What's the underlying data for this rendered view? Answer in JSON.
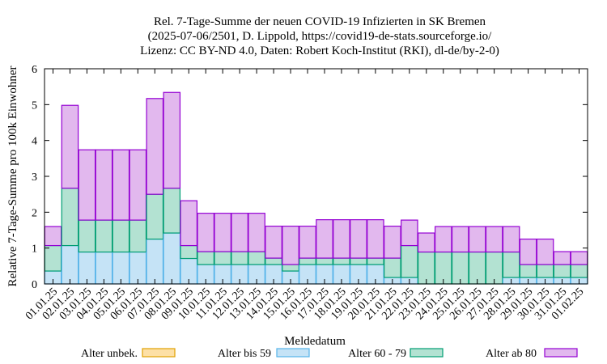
{
  "chart_data": {
    "type": "bar",
    "stacked": true,
    "title_lines": [
      "Rel. 7-Tage-Summe der neuen COVID-19 Infizierten in SK Bremen",
      "(2025-07-06/2501, D. Lippold, https://covid19-de-stats.sourceforge.io/",
      "Lizenz: CC BY-ND 4.0, Daten: Robert Koch-Institut (RKI), dl-de/by-2-0)"
    ],
    "xlabel": "Meldedatum",
    "ylabel": "Relative 7-Tage-Summe pro 100k Einwohner",
    "ylim": [
      0,
      6
    ],
    "yticks": [
      0,
      1,
      2,
      3,
      4,
      5,
      6
    ],
    "grid": false,
    "legend_position": "bottom",
    "categories": [
      "01.01.25",
      "02.01.25",
      "03.01.25",
      "04.01.25",
      "05.01.25",
      "06.01.25",
      "07.01.25",
      "08.01.25",
      "09.01.25",
      "10.01.25",
      "11.01.25",
      "12.01.25",
      "13.01.25",
      "14.01.25",
      "15.01.25",
      "16.01.25",
      "17.01.25",
      "18.01.25",
      "19.01.25",
      "20.01.25",
      "21.01.25",
      "22.01.25",
      "23.01.25",
      "24.01.25",
      "25.01.25",
      "26.01.25",
      "27.01.25",
      "28.01.25",
      "29.01.25",
      "30.01.25",
      "31.01.25",
      "01.02.25"
    ],
    "series": [
      {
        "name": "Alter unbek.",
        "color": "#fde0a6",
        "stroke": "#e0a000",
        "values": [
          0,
          0,
          0,
          0,
          0,
          0,
          0,
          0,
          0,
          0,
          0,
          0,
          0,
          0,
          0,
          0,
          0,
          0,
          0,
          0,
          0,
          0,
          0,
          0,
          0,
          0,
          0,
          0,
          0,
          0,
          0,
          0
        ]
      },
      {
        "name": "Alter bis 59",
        "color": "#c5e3f6",
        "stroke": "#56b4e9",
        "values": [
          0.36,
          1.07,
          0.89,
          0.89,
          0.89,
          0.89,
          1.25,
          1.42,
          0.71,
          0.54,
          0.54,
          0.54,
          0.54,
          0.54,
          0.36,
          0.54,
          0.54,
          0.54,
          0.54,
          0.54,
          0.18,
          0.18,
          0,
          0,
          0,
          0,
          0,
          0.18,
          0.18,
          0.18,
          0.18,
          0.18
        ]
      },
      {
        "name": "Alter 60 - 79",
        "color": "#b3e2d2",
        "stroke": "#009e73",
        "values": [
          0.71,
          1.6,
          0.89,
          0.89,
          0.89,
          0.89,
          1.25,
          1.25,
          0.36,
          0.36,
          0.36,
          0.36,
          0.36,
          0.18,
          0.18,
          0.18,
          0.18,
          0.18,
          0.18,
          0.18,
          0.54,
          0.89,
          0.89,
          0.89,
          0.89,
          0.89,
          0.89,
          0.71,
          0.36,
          0.36,
          0.36,
          0.36
        ]
      },
      {
        "name": "Alter ab 80",
        "color": "#e2b8ee",
        "stroke": "#9400d3",
        "values": [
          0.53,
          2.31,
          1.96,
          1.96,
          1.96,
          1.96,
          2.67,
          2.67,
          1.25,
          1.07,
          1.07,
          1.07,
          1.07,
          0.89,
          1.07,
          0.89,
          1.07,
          1.07,
          1.07,
          1.07,
          0.89,
          0.71,
          0.53,
          0.71,
          0.71,
          0.71,
          0.71,
          0.71,
          0.71,
          0.71,
          0.36,
          0.36
        ]
      }
    ]
  }
}
